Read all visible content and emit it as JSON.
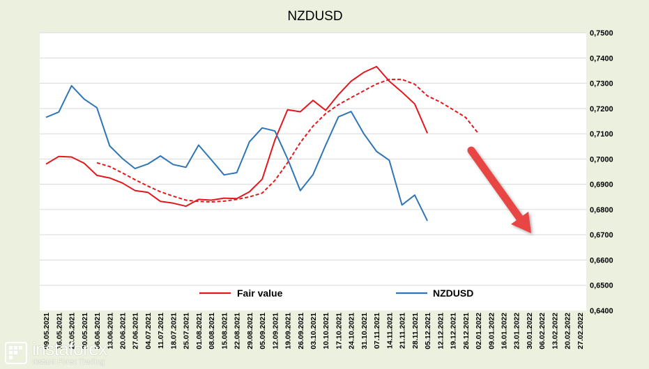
{
  "chart_data": {
    "type": "line",
    "title": "NZDUSD",
    "ylim": [
      0.64,
      0.75
    ],
    "y_ticks": [
      "0,6400",
      "0,6500",
      "0,6600",
      "0,6700",
      "0,6800",
      "0,6900",
      "0,7000",
      "0,7100",
      "0,7200",
      "0,7300",
      "0,7400",
      "0,7500"
    ],
    "x_labels": [
      "09.05.2021",
      "16.05.2021",
      "23.05.2021",
      "30.05.2021",
      "06.06.2021",
      "13.06.2021",
      "20.06.2021",
      "27.06.2021",
      "04.07.2021",
      "11.07.2021",
      "18.07.2021",
      "25.07.2021",
      "01.08.2021",
      "08.08.2021",
      "15.08.2021",
      "22.08.2021",
      "29.08.2021",
      "05.09.2021",
      "12.09.2021",
      "19.09.2021",
      "26.09.2021",
      "03.10.2021",
      "10.10.2021",
      "17.10.2021",
      "24.10.2021",
      "31.10.2021",
      "07.11.2021",
      "14.11.2021",
      "21.11.2021",
      "28.11.2021",
      "05.12.2021",
      "12.12.2021",
      "19.12.2021",
      "26.12.2021",
      "02.01.2022",
      "09.01.2022",
      "16.01.2022",
      "23.01.2022",
      "30.01.2022",
      "06.02.2022",
      "13.02.2022",
      "20.02.2022",
      "27.02.2022"
    ],
    "grid": true,
    "legend": "bottom",
    "series": [
      {
        "name": "Fair value",
        "color": "#e3171b",
        "style": "solid",
        "start_index": 0,
        "values": [
          0.698,
          0.701,
          0.7008,
          0.6983,
          0.6935,
          0.6925,
          0.6905,
          0.6875,
          0.6868,
          0.6832,
          0.6825,
          0.6813,
          0.684,
          0.6837,
          0.6845,
          0.6843,
          0.687,
          0.692,
          0.7075,
          0.7195,
          0.7187,
          0.7232,
          0.7193,
          0.7255,
          0.7308,
          0.7343,
          0.7366,
          0.7308,
          0.7265,
          0.7218,
          0.7102
        ]
      },
      {
        "name": "",
        "color": "#e3171b",
        "style": "dashed",
        "start_index": 4,
        "values": [
          0.6985,
          0.697,
          0.6945,
          0.6918,
          0.6893,
          0.687,
          0.6853,
          0.6837,
          0.6832,
          0.683,
          0.6833,
          0.684,
          0.685,
          0.6865,
          0.6915,
          0.6985,
          0.7065,
          0.713,
          0.718,
          0.7215,
          0.7243,
          0.727,
          0.7297,
          0.7315,
          0.7315,
          0.7296,
          0.725,
          0.7226,
          0.7196,
          0.7165,
          0.7102
        ]
      },
      {
        "name": "NZDUSD",
        "color": "#2e75b6",
        "style": "solid",
        "start_index": 0,
        "values": [
          0.7165,
          0.7186,
          0.729,
          0.7237,
          0.7203,
          0.7052,
          0.7002,
          0.6962,
          0.698,
          0.7012,
          0.6978,
          0.6967,
          0.7055,
          0.6997,
          0.6937,
          0.6946,
          0.7068,
          0.7123,
          0.7111,
          0.7001,
          0.6875,
          0.6938,
          0.7055,
          0.7167,
          0.7188,
          0.71,
          0.703,
          0.6995,
          0.6818,
          0.6857,
          0.6755
        ]
      }
    ],
    "annotation": "red arrow pointing down-right"
  },
  "watermark": {
    "brand": "instaforex",
    "tagline": "Instant Forex Trading"
  }
}
